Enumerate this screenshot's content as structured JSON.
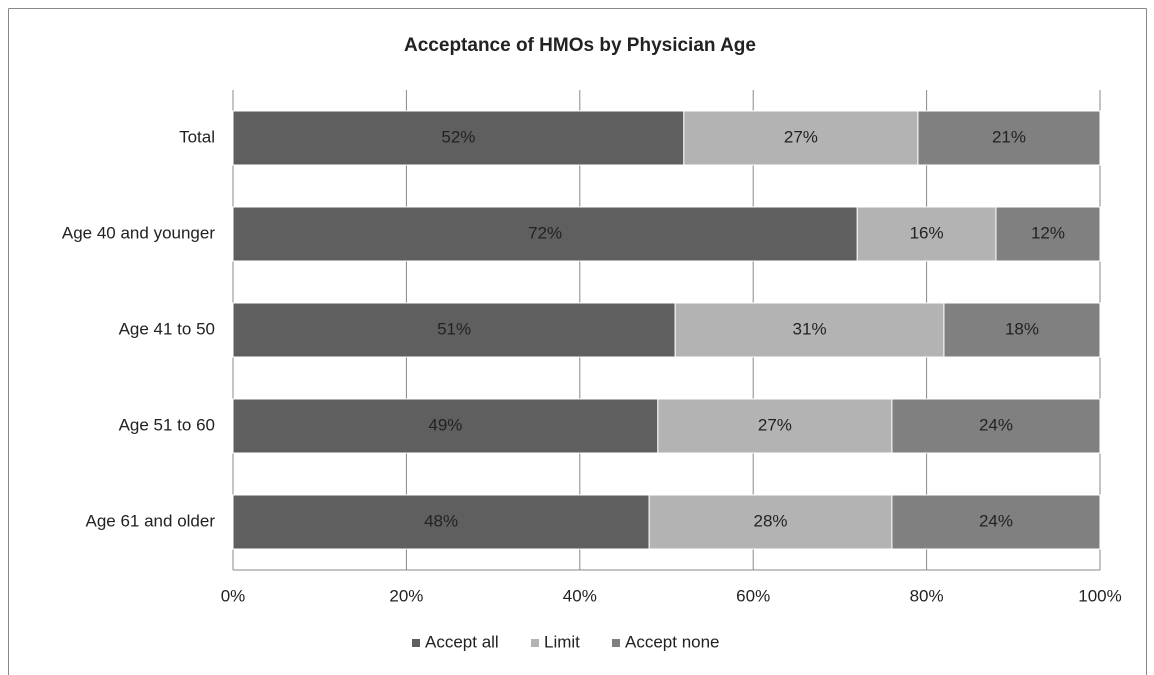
{
  "chart_data": {
    "type": "stacked_bar_horizontal",
    "title": "Acceptance of HMOs by Physician Age",
    "categories": [
      "Total",
      "Age 40 and younger",
      "Age 41 to 50",
      "Age 51 to 60",
      "Age 61 and older"
    ],
    "series": [
      {
        "name": "Accept all",
        "color": "#5f5f5f",
        "values": [
          52,
          72,
          51,
          49,
          48
        ],
        "value_labels": [
          "52%",
          "72%",
          "51%",
          "49%",
          "48%"
        ]
      },
      {
        "name": "Limit",
        "color": "#b3b3b3",
        "values": [
          27,
          16,
          31,
          27,
          28
        ],
        "value_labels": [
          "27%",
          "16%",
          "31%",
          "27%",
          "28%"
        ]
      },
      {
        "name": "Accept none",
        "color": "#808080",
        "values": [
          21,
          12,
          18,
          24,
          24
        ],
        "value_labels": [
          "21%",
          "12%",
          "18%",
          "24%",
          "24%"
        ]
      }
    ],
    "xlim": [
      0,
      100
    ],
    "xticks": [
      {
        "value": 0,
        "label": "0%"
      },
      {
        "value": 20,
        "label": "20%"
      },
      {
        "value": 40,
        "label": "40%"
      },
      {
        "value": 60,
        "label": "60%"
      },
      {
        "value": 80,
        "label": "80%"
      },
      {
        "value": 100,
        "label": "100%"
      }
    ],
    "grid": true,
    "legend": "bottom"
  }
}
